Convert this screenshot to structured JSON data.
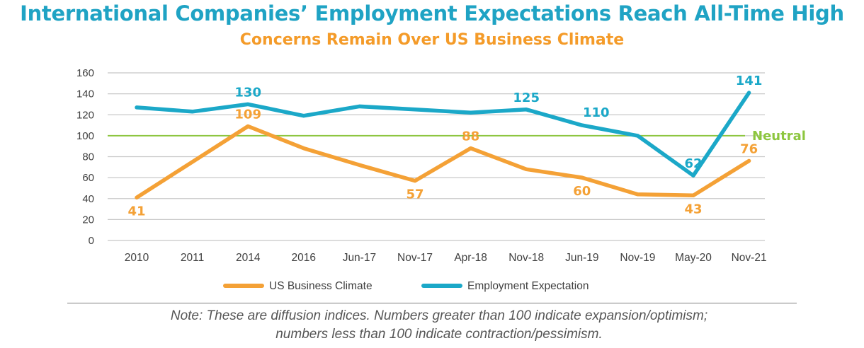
{
  "title": "International Companies’ Employment Expectations Reach All-Time High",
  "subtitle": "Concerns Remain Over US Business Climate",
  "colors": {
    "title": "#1fa3c4",
    "subtitle": "#f49b29",
    "employment": "#1ba8c8",
    "business": "#f4a136",
    "neutral": "#8dc63f",
    "grid": "#c8c8c8",
    "axis_text": "#404040"
  },
  "chart_data": {
    "type": "line",
    "title": "",
    "xlabel": "",
    "ylabel": "",
    "ylim": [
      0,
      160
    ],
    "yticks": [
      0,
      20,
      40,
      60,
      80,
      100,
      120,
      140,
      160
    ],
    "grid": true,
    "legend_position": "bottom",
    "categories": [
      "2010",
      "2011",
      "2014",
      "2016",
      "Jun-17",
      "Nov-17",
      "Apr-18",
      "Nov-18",
      "Jun-19",
      "Nov-19",
      "May-20",
      "Nov-21"
    ],
    "series": [
      {
        "name": "US Business Climate",
        "color": "#f4a136",
        "values": [
          41,
          75,
          109,
          88,
          72,
          57,
          88,
          68,
          60,
          44,
          43,
          76
        ],
        "data_labels": [
          {
            "index": 0,
            "text": "41",
            "position": "below"
          },
          {
            "index": 2,
            "text": "109",
            "position": "above"
          },
          {
            "index": 5,
            "text": "57",
            "position": "below"
          },
          {
            "index": 6,
            "text": "88",
            "position": "above"
          },
          {
            "index": 8,
            "text": "60",
            "position": "below"
          },
          {
            "index": 10,
            "text": "43",
            "position": "below"
          },
          {
            "index": 11,
            "text": "76",
            "position": "above"
          }
        ]
      },
      {
        "name": "Employment Expectation",
        "color": "#1ba8c8",
        "values": [
          127,
          123,
          130,
          119,
          128,
          125,
          122,
          125,
          110,
          100,
          62,
          141
        ],
        "data_labels": [
          {
            "index": 2,
            "text": "130",
            "position": "above"
          },
          {
            "index": 7,
            "text": "125",
            "position": "above"
          },
          {
            "index": 8,
            "text": "110",
            "position": "above-right"
          },
          {
            "index": 10,
            "text": "62",
            "position": "above"
          },
          {
            "index": 11,
            "text": "141",
            "position": "above"
          }
        ]
      }
    ],
    "reference_line": {
      "value": 100,
      "label": "Neutral",
      "color": "#8dc63f"
    }
  },
  "note": {
    "line1": "Note: These are diffusion indices. Numbers greater than 100 indicate expansion/optimism;",
    "line2": "numbers less than 100 indicate contraction/pessimism."
  }
}
